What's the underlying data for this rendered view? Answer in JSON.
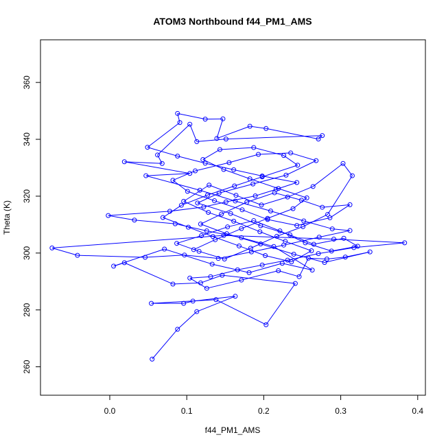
{
  "chart_data": {
    "type": "line",
    "title": "ATOM3 Northbound f44_PM1_AMS",
    "xlabel": "f44_PM1_AMS",
    "ylabel": "Theta (K)",
    "xlim": [
      -0.09,
      0.41
    ],
    "ylim": [
      250,
      375
    ],
    "x_ticks": [
      0.0,
      0.1,
      0.2,
      0.3,
      0.4
    ],
    "x_tick_labels": [
      "0.0",
      "0.1",
      "0.2",
      "0.3",
      "0.4"
    ],
    "y_ticks": [
      260,
      280,
      300,
      320,
      340,
      360
    ],
    "y_tick_labels": [
      "260",
      "280",
      "300",
      "320",
      "340",
      "360"
    ],
    "grid": false,
    "legend": "none",
    "series_color": "#0000ff",
    "series": [
      {
        "values": [
          [
            0.055,
            262.7
          ],
          [
            0.088,
            273.2
          ],
          [
            0.113,
            279.4
          ],
          [
            0.163,
            284.8
          ],
          [
            0.108,
            283.1
          ],
          [
            0.096,
            282.3
          ],
          [
            0.054,
            282.3
          ],
          [
            0.138,
            283.6
          ],
          [
            0.203,
            274.8
          ],
          [
            0.241,
            289.3
          ],
          [
            0.146,
            292.2
          ],
          [
            0.118,
            289.5
          ],
          [
            0.082,
            289.1
          ],
          [
            0.019,
            296.6
          ],
          [
            0.005,
            295.4
          ],
          [
            0.071,
            301.4
          ],
          [
            0.133,
            296.1
          ],
          [
            0.181,
            293.1
          ],
          [
            0.224,
            296.4
          ],
          [
            0.263,
            294.0
          ],
          [
            0.213,
            302.3
          ],
          [
            0.171,
            305.4
          ],
          [
            0.126,
            307.8
          ],
          [
            0.085,
            310.3
          ],
          [
            0.032,
            311.6
          ],
          [
            -0.002,
            313.2
          ],
          [
            0.078,
            314.7
          ],
          [
            0.122,
            316.2
          ],
          [
            0.151,
            318.0
          ],
          [
            0.189,
            320.1
          ],
          [
            0.216,
            322.4
          ],
          [
            0.243,
            324.8
          ],
          [
            0.198,
            327.1
          ],
          [
            0.161,
            329.3
          ],
          [
            0.124,
            331.6
          ],
          [
            0.088,
            334.1
          ],
          [
            0.049,
            337.2
          ],
          [
            0.091,
            345.9
          ],
          [
            0.088,
            349.1
          ],
          [
            0.124,
            347.1
          ],
          [
            0.147,
            347.2
          ],
          [
            0.139,
            340.3
          ],
          [
            0.182,
            344.6
          ],
          [
            0.203,
            343.8
          ],
          [
            0.271,
            340.1
          ],
          [
            0.276,
            341.3
          ],
          [
            0.151,
            340.1
          ],
          [
            0.113,
            339.2
          ],
          [
            0.104,
            345.3
          ],
          [
            0.062,
            334.5
          ],
          [
            0.068,
            331.5
          ],
          [
            0.019,
            332.1
          ],
          [
            0.104,
            328.0
          ],
          [
            0.047,
            327.2
          ],
          [
            0.117,
            322.1
          ],
          [
            0.163,
            318.3
          ],
          [
            0.209,
            314.8
          ],
          [
            0.252,
            311.3
          ],
          [
            0.289,
            308.5
          ],
          [
            0.312,
            307.9
          ],
          [
            0.272,
            305.6
          ],
          [
            0.226,
            302.8
          ],
          [
            0.184,
            300.4
          ],
          [
            0.141,
            298.1
          ],
          [
            0.097,
            299.3
          ],
          [
            0.046,
            298.5
          ],
          [
            -0.042,
            299.2
          ],
          [
            -0.075,
            301.8
          ],
          [
            0.148,
            306.2
          ],
          [
            0.291,
            304.9
          ],
          [
            0.383,
            303.6
          ],
          [
            0.317,
            301.9
          ],
          [
            0.271,
            299.8
          ],
          [
            0.231,
            297.5
          ],
          [
            0.198,
            295.8
          ],
          [
            0.166,
            294.1
          ],
          [
            0.131,
            291.7
          ],
          [
            0.104,
            291.2
          ],
          [
            0.126,
            287.6
          ],
          [
            0.171,
            290.5
          ],
          [
            0.219,
            293.8
          ],
          [
            0.246,
            291.7
          ],
          [
            0.258,
            298.2
          ],
          [
            0.282,
            297.9
          ],
          [
            0.306,
            298.6
          ],
          [
            0.338,
            300.4
          ],
          [
            0.279,
            296.7
          ],
          [
            0.239,
            299.6
          ],
          [
            0.196,
            303.2
          ],
          [
            0.152,
            306.8
          ],
          [
            0.118,
            310.2
          ],
          [
            0.145,
            313.7
          ],
          [
            0.178,
            317.9
          ],
          [
            0.214,
            321.2
          ],
          [
            0.249,
            318.6
          ],
          [
            0.276,
            316.1
          ],
          [
            0.312,
            317.0
          ],
          [
            0.286,
            312.4
          ],
          [
            0.243,
            309.7
          ],
          [
            0.205,
            311.8
          ],
          [
            0.172,
            315.2
          ],
          [
            0.136,
            318.4
          ],
          [
            0.101,
            321.7
          ],
          [
            0.082,
            325.6
          ],
          [
            0.111,
            328.9
          ],
          [
            0.155,
            331.8
          ],
          [
            0.193,
            334.7
          ],
          [
            0.235,
            335.2
          ],
          [
            0.268,
            332.5
          ],
          [
            0.229,
            327.4
          ],
          [
            0.186,
            324.3
          ],
          [
            0.142,
            321.1
          ],
          [
            0.114,
            317.6
          ],
          [
            0.157,
            313.9
          ],
          [
            0.196,
            309.6
          ],
          [
            0.234,
            306.4
          ],
          [
            0.265,
            303.1
          ],
          [
            0.304,
            305.2
          ],
          [
            0.322,
            302.4
          ],
          [
            0.288,
            300.7
          ],
          [
            0.254,
            303.6
          ],
          [
            0.221,
            307.8
          ],
          [
            0.187,
            311.4
          ],
          [
            0.153,
            309.2
          ],
          [
            0.119,
            306.1
          ],
          [
            0.087,
            303.4
          ],
          [
            0.116,
            300.6
          ],
          [
            0.149,
            297.9
          ],
          [
            0.183,
            301.7
          ],
          [
            0.217,
            305.9
          ],
          [
            0.251,
            309.3
          ],
          [
            0.283,
            313.6
          ],
          [
            0.315,
            327.2
          ],
          [
            0.303,
            331.5
          ],
          [
            0.264,
            323.4
          ],
          [
            0.231,
            319.7
          ],
          [
            0.197,
            316.9
          ],
          [
            0.164,
            320.3
          ],
          [
            0.129,
            323.9
          ],
          [
            0.096,
            318.2
          ],
          [
            0.128,
            314.3
          ],
          [
            0.161,
            311.2
          ],
          [
            0.195,
            307.5
          ],
          [
            0.228,
            304.1
          ],
          [
            0.262,
            300.8
          ],
          [
            0.236,
            296.9
          ],
          [
            0.202,
            299.1
          ],
          [
            0.168,
            302.5
          ],
          [
            0.134,
            305.8
          ],
          [
            0.102,
            309.1
          ],
          [
            0.069,
            312.5
          ],
          [
            0.093,
            316.8
          ],
          [
            0.127,
            320.4
          ],
          [
            0.162,
            323.6
          ],
          [
            0.198,
            326.8
          ],
          [
            0.244,
            330.9
          ],
          [
            0.226,
            334.3
          ],
          [
            0.187,
            337.1
          ],
          [
            0.143,
            336.4
          ],
          [
            0.121,
            332.9
          ],
          [
            0.148,
            329.4
          ],
          [
            0.182,
            326.1
          ],
          [
            0.219,
            322.7
          ],
          [
            0.256,
            319.4
          ],
          [
            0.238,
            315.6
          ],
          [
            0.205,
            312.2
          ],
          [
            0.171,
            308.6
          ],
          [
            0.137,
            304.7
          ],
          [
            0.109,
            301.2
          ]
        ]
      }
    ]
  }
}
